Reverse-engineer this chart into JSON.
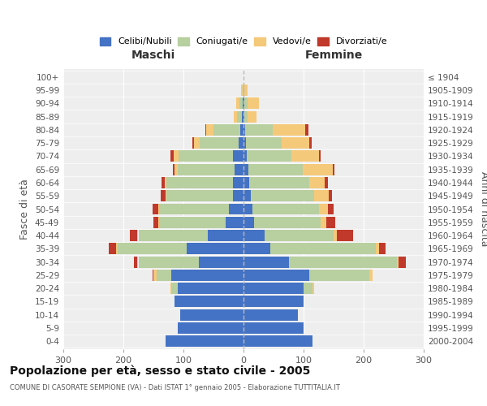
{
  "age_groups": [
    "0-4",
    "5-9",
    "10-14",
    "15-19",
    "20-24",
    "25-29",
    "30-34",
    "35-39",
    "40-44",
    "45-49",
    "50-54",
    "55-59",
    "60-64",
    "65-69",
    "70-74",
    "75-79",
    "80-84",
    "85-89",
    "90-94",
    "95-99",
    "100+"
  ],
  "birth_years": [
    "2000-2004",
    "1995-1999",
    "1990-1994",
    "1985-1989",
    "1980-1984",
    "1975-1979",
    "1970-1974",
    "1965-1969",
    "1960-1964",
    "1955-1959",
    "1950-1954",
    "1945-1949",
    "1940-1944",
    "1935-1939",
    "1930-1934",
    "1925-1929",
    "1920-1924",
    "1915-1919",
    "1910-1914",
    "1905-1909",
    "≤ 1904"
  ],
  "maschi": {
    "celibi": [
      130,
      110,
      105,
      115,
      110,
      120,
      75,
      95,
      60,
      30,
      25,
      18,
      18,
      15,
      18,
      8,
      5,
      3,
      2,
      0,
      0
    ],
    "coniugati": [
      0,
      0,
      0,
      0,
      10,
      25,
      100,
      115,
      115,
      110,
      115,
      110,
      110,
      95,
      90,
      65,
      45,
      8,
      5,
      2,
      0
    ],
    "vedovi": [
      0,
      0,
      0,
      0,
      2,
      5,
      2,
      2,
      2,
      2,
      2,
      2,
      3,
      5,
      8,
      10,
      12,
      5,
      5,
      2,
      0
    ],
    "divorziati": [
      0,
      0,
      0,
      0,
      0,
      2,
      5,
      12,
      12,
      8,
      10,
      8,
      5,
      3,
      5,
      2,
      2,
      0,
      0,
      0,
      0
    ]
  },
  "femmine": {
    "nubili": [
      115,
      100,
      90,
      100,
      100,
      110,
      75,
      45,
      35,
      18,
      15,
      12,
      10,
      8,
      5,
      4,
      3,
      2,
      2,
      0,
      0
    ],
    "coniugate": [
      0,
      0,
      0,
      0,
      15,
      100,
      180,
      175,
      115,
      110,
      110,
      105,
      100,
      90,
      75,
      60,
      45,
      5,
      5,
      2,
      0
    ],
    "vedove": [
      0,
      0,
      0,
      0,
      2,
      5,
      3,
      5,
      5,
      10,
      15,
      25,
      25,
      50,
      45,
      45,
      55,
      15,
      18,
      5,
      0
    ],
    "divorziate": [
      0,
      0,
      0,
      0,
      0,
      0,
      12,
      12,
      28,
      15,
      10,
      5,
      5,
      3,
      3,
      5,
      5,
      0,
      0,
      0,
      0
    ]
  },
  "colors": {
    "celibi": "#4472c4",
    "coniugati": "#b8cfa0",
    "vedovi": "#f5c97a",
    "divorziati": "#c0392b"
  },
  "xlim": 300,
  "title": "Popolazione per età, sesso e stato civile - 2005",
  "subtitle": "COMUNE DI CASORATE SEMPIONE (VA) - Dati ISTAT 1° gennaio 2005 - Elaborazione TUTTITALIA.IT",
  "ylabel_left": "Fasce di età",
  "ylabel_right": "Anni di nascita",
  "xlabel_left": "Maschi",
  "xlabel_right": "Femmine",
  "bg_color": "#ffffff",
  "plot_bg": "#eeeeee",
  "grid_color": "#ffffff",
  "bar_height": 0.85
}
